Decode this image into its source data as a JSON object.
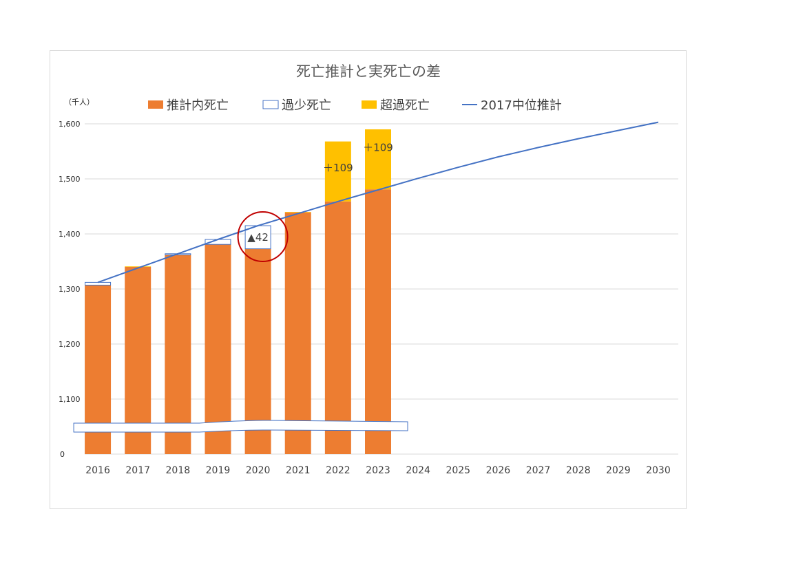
{
  "chart_data": {
    "type": "bar",
    "stacked": true,
    "title": "死亡推計と実死亡の差",
    "unit_label": "（千人）",
    "categories": [
      "2016",
      "2017",
      "2018",
      "2019",
      "2020",
      "2021",
      "2022",
      "2023",
      "2024",
      "2025",
      "2026",
      "2027",
      "2028",
      "2029",
      "2030"
    ],
    "y_ticks": [
      {
        "value": 0,
        "label": "0"
      },
      {
        "value": 1100,
        "label": "1,100"
      },
      {
        "value": 1200,
        "label": "1,200"
      },
      {
        "value": 1300,
        "label": "1,300"
      },
      {
        "value": 1400,
        "label": "1,400"
      },
      {
        "value": 1500,
        "label": "1,500"
      },
      {
        "value": 1600,
        "label": "1,600"
      }
    ],
    "y_axis_break": {
      "from": 0,
      "to": 1050
    },
    "ylim": [
      0,
      1650
    ],
    "grid": true,
    "legend_position": "top",
    "series": [
      {
        "name": "推計内死亡",
        "kind": "bar",
        "color": "#ed7d31",
        "values": [
          1307,
          1340,
          1362,
          1381,
          1373,
          1439,
          1459,
          1481,
          null,
          null,
          null,
          null,
          null,
          null,
          null
        ]
      },
      {
        "name": "過少死亡",
        "kind": "bar-outline",
        "color": "#4472c4",
        "values": [
          5,
          0,
          2,
          9,
          42,
          0,
          0,
          0,
          null,
          null,
          null,
          null,
          null,
          null,
          null
        ]
      },
      {
        "name": "超過死亡",
        "kind": "bar",
        "color": "#ffc000",
        "values": [
          0,
          1,
          0,
          0,
          0,
          1,
          109,
          109,
          null,
          null,
          null,
          null,
          null,
          null,
          null
        ]
      },
      {
        "name": "2017中位推計",
        "kind": "line",
        "color": "#4472c4",
        "values": [
          1312,
          1338,
          1364,
          1390,
          1415,
          1437,
          1459,
          1480,
          1501,
          1521,
          1540,
          1557,
          1573,
          1588,
          1603
        ]
      }
    ],
    "data_labels": [
      {
        "category": "2020",
        "text": "▲42"
      },
      {
        "category": "2022",
        "text": "＋109"
      },
      {
        "category": "2023",
        "text": "＋109"
      }
    ],
    "highlight": {
      "category": "2020",
      "color": "#c00000"
    }
  }
}
